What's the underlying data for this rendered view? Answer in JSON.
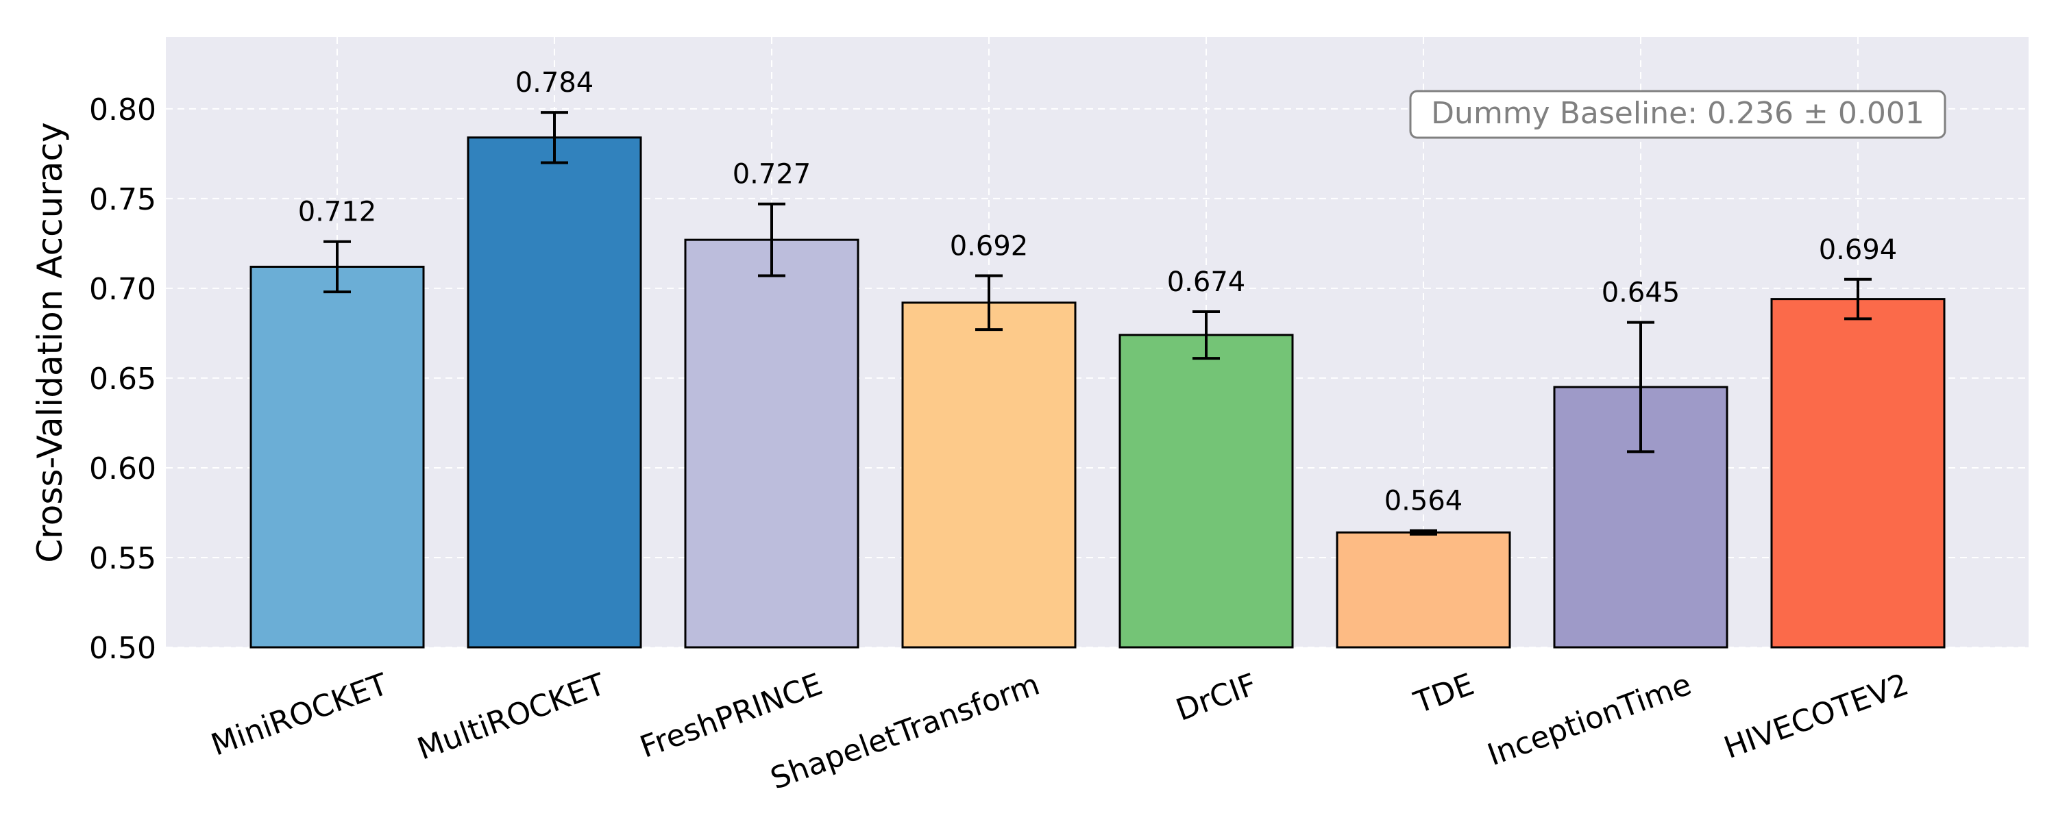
{
  "chart_data": {
    "type": "bar",
    "categories": [
      "MiniROCKET",
      "MultiROCKET",
      "FreshPRINCE",
      "ShapeletTransform",
      "DrCIF",
      "TDE",
      "InceptionTime",
      "HIVECOTEV2"
    ],
    "values": [
      0.712,
      0.784,
      0.727,
      0.692,
      0.674,
      0.564,
      0.645,
      0.694
    ],
    "value_labels": [
      "0.712",
      "0.784",
      "0.727",
      "0.692",
      "0.674",
      "0.564",
      "0.645",
      "0.694"
    ],
    "errors": [
      0.014,
      0.014,
      0.02,
      0.015,
      0.013,
      0.001,
      0.036,
      0.011
    ],
    "colors": [
      "#6baed6",
      "#3182bd",
      "#bcbddc",
      "#fdca8a",
      "#74c476",
      "#fdbb84",
      "#9e9ac8",
      "#fb6a4a"
    ],
    "ylabel": "Cross-Validation Accuracy",
    "xlabel": "",
    "ylim": [
      0.5,
      0.84
    ],
    "yticks": [
      0.5,
      0.55,
      0.6,
      0.65,
      0.7,
      0.75,
      0.8
    ],
    "ytick_labels": [
      "0.50",
      "0.55",
      "0.60",
      "0.65",
      "0.70",
      "0.75",
      "0.80"
    ],
    "grid": true,
    "annotation": "Dummy Baseline: 0.236 ± 0.001",
    "annotation_placement": "top-right"
  },
  "style": {
    "plot_background": "#eaeaf2",
    "grid_color": "#ffffff",
    "annotation_text_color": "#808080",
    "annotation_border_color": "#808080"
  }
}
